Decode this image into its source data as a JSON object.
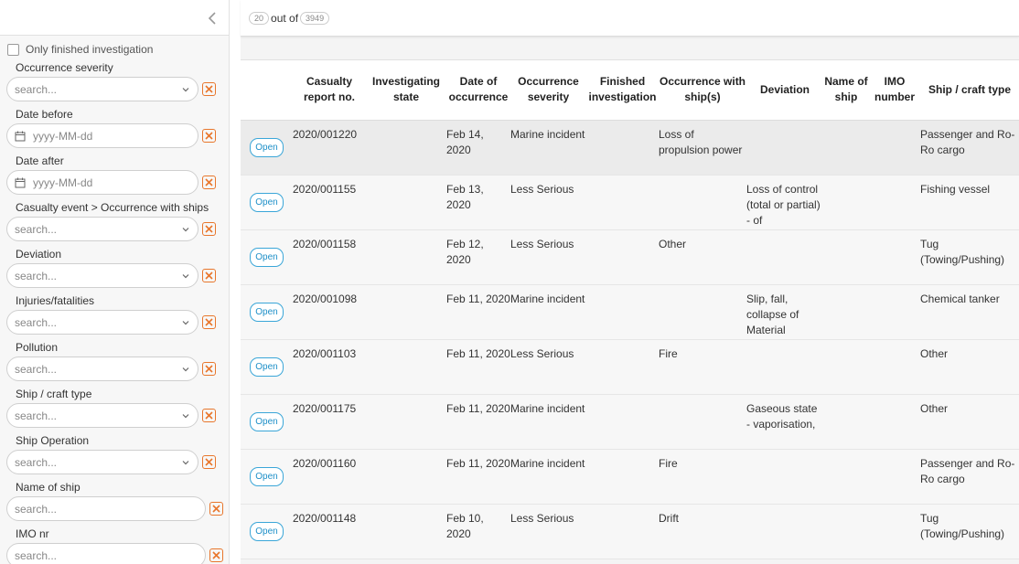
{
  "sidebar": {
    "only_finished_label": "Only finished investigation",
    "filters": [
      {
        "label": "Occurrence severity",
        "type": "select",
        "placeholder": "search..."
      },
      {
        "label": "Date before",
        "type": "date",
        "placeholder": "yyyy-MM-dd"
      },
      {
        "label": "Date after",
        "type": "date",
        "placeholder": "yyyy-MM-dd"
      },
      {
        "label": "Casualty event > Occurrence with ships",
        "type": "select",
        "placeholder": "search..."
      },
      {
        "label": "Deviation",
        "type": "select",
        "placeholder": "search..."
      },
      {
        "label": "Injuries/fatalities",
        "type": "select",
        "placeholder": "search..."
      },
      {
        "label": "Pollution",
        "type": "select",
        "placeholder": "search..."
      },
      {
        "label": "Ship / craft type",
        "type": "select",
        "placeholder": "search..."
      },
      {
        "label": "Ship Operation",
        "type": "select",
        "placeholder": "search..."
      },
      {
        "label": "Name of ship",
        "type": "text",
        "placeholder": "search..."
      },
      {
        "label": "IMO nr",
        "type": "text",
        "placeholder": "search..."
      }
    ]
  },
  "count": {
    "shown": "20",
    "separator": "out of",
    "total": "3949"
  },
  "table": {
    "columns": [
      "",
      "Casualty report no.",
      "Investigating state",
      "Date of occurrence",
      "Occurrence severity",
      "Finished investigation",
      "Occurrence with ship(s)",
      "Deviation",
      "Name of ship",
      "IMO number",
      "Ship / craft type"
    ],
    "rows": [
      {
        "status": "Open",
        "report": "2020/001220",
        "state": "",
        "date": "Feb 14, 2020",
        "severity": "Marine incident",
        "finished": "",
        "occurrence": "Loss of propulsion power",
        "deviation": "",
        "ship": "",
        "imo": "",
        "type": "Passenger and Ro-Ro cargo"
      },
      {
        "status": "Open",
        "report": "2020/001155",
        "state": "",
        "date": "Feb 13, 2020",
        "severity": "Less Serious",
        "finished": "",
        "occurrence": "",
        "deviation": "Loss of control (total or partial) - of",
        "ship": "",
        "imo": "",
        "type": "Fishing vessel"
      },
      {
        "status": "Open",
        "report": "2020/001158",
        "state": "",
        "date": "Feb 12, 2020",
        "severity": "Less Serious",
        "finished": "",
        "occurrence": "Other",
        "deviation": "",
        "ship": "",
        "imo": "",
        "type": "Tug (Towing/Pushing)"
      },
      {
        "status": "Open",
        "report": "2020/001098",
        "state": "",
        "date": "Feb 11, 2020",
        "severity": "Marine incident",
        "finished": "",
        "occurrence": "",
        "deviation": "Slip, fall, collapse of Material",
        "ship": "",
        "imo": "",
        "type": "Chemical tanker"
      },
      {
        "status": "Open",
        "report": "2020/001103",
        "state": "",
        "date": "Feb 11, 2020",
        "severity": "Less Serious",
        "finished": "",
        "occurrence": "Fire",
        "deviation": "",
        "ship": "",
        "imo": "",
        "type": "Other"
      },
      {
        "status": "Open",
        "report": "2020/001175",
        "state": "",
        "date": "Feb 11, 2020",
        "severity": "Marine incident",
        "finished": "",
        "occurrence": "",
        "deviation": "Gaseous state - vaporisation,",
        "ship": "",
        "imo": "",
        "type": "Other"
      },
      {
        "status": "Open",
        "report": "2020/001160",
        "state": "",
        "date": "Feb 11, 2020",
        "severity": "Marine incident",
        "finished": "",
        "occurrence": "Fire",
        "deviation": "",
        "ship": "",
        "imo": "",
        "type": "Passenger and Ro-Ro cargo"
      },
      {
        "status": "Open",
        "report": "2020/001148",
        "state": "",
        "date": "Feb 10, 2020",
        "severity": "Less Serious",
        "finished": "",
        "occurrence": "Drift",
        "deviation": "",
        "ship": "",
        "imo": "",
        "type": "Tug (Towing/Pushing)"
      }
    ]
  },
  "colors": {
    "accent_orange": "#e8762c",
    "badge_blue": "#1d8fc8"
  },
  "icons": {
    "collapse": "chevron-left-icon",
    "calendar": "calendar-icon",
    "dropdown": "chevron-down-icon",
    "clear": "close-icon"
  }
}
